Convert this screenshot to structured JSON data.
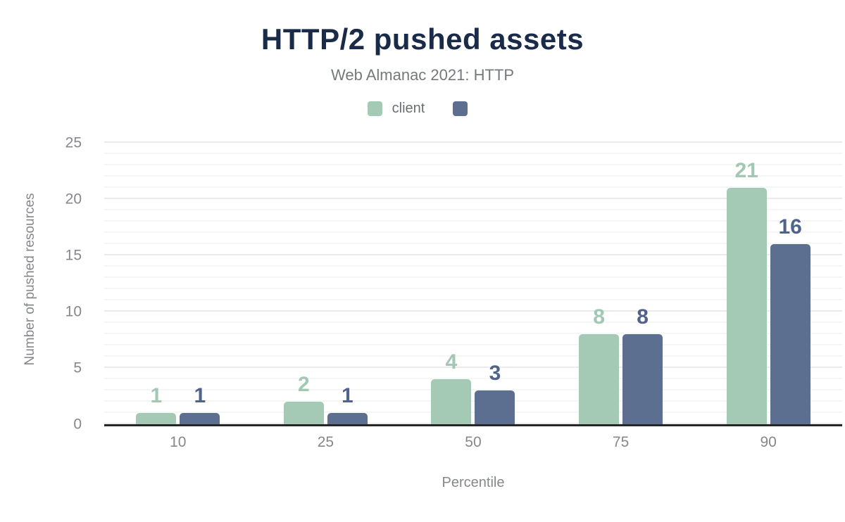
{
  "header": {
    "title": "HTTP/2 pushed assets",
    "subtitle": "Web Almanac 2021: HTTP"
  },
  "theme": {
    "background": "#ffffff",
    "title_color": "#1a2b49",
    "subtitle_color": "#76797b",
    "axis_text_color": "#85878a",
    "axis_line_color": "#262626",
    "gridline_major": "#ebebeb",
    "gridline_minor": "#f6f6f6"
  },
  "chart_data": {
    "type": "bar",
    "title": "HTTP/2 pushed assets",
    "subtitle": "Web Almanac 2021: HTTP",
    "categories": [
      "10",
      "25",
      "50",
      "75",
      "90"
    ],
    "series": [
      {
        "name": "client",
        "color": "#a4c9b5",
        "label_color": "#a2c8b3",
        "values": [
          1,
          2,
          4,
          8,
          21
        ]
      },
      {
        "name": "",
        "color": "#5d6f90",
        "label_color": "#50638b",
        "values": [
          1,
          1,
          3,
          8,
          16
        ]
      }
    ],
    "xlabel": "Percentile",
    "ylabel": "Number of pushed resources",
    "yticks": [
      0,
      5,
      10,
      15,
      20,
      25
    ],
    "ylim": [
      0,
      25
    ],
    "grid": "horizontal-minor-and-major",
    "legend_position": "top",
    "data_labels": true
  }
}
